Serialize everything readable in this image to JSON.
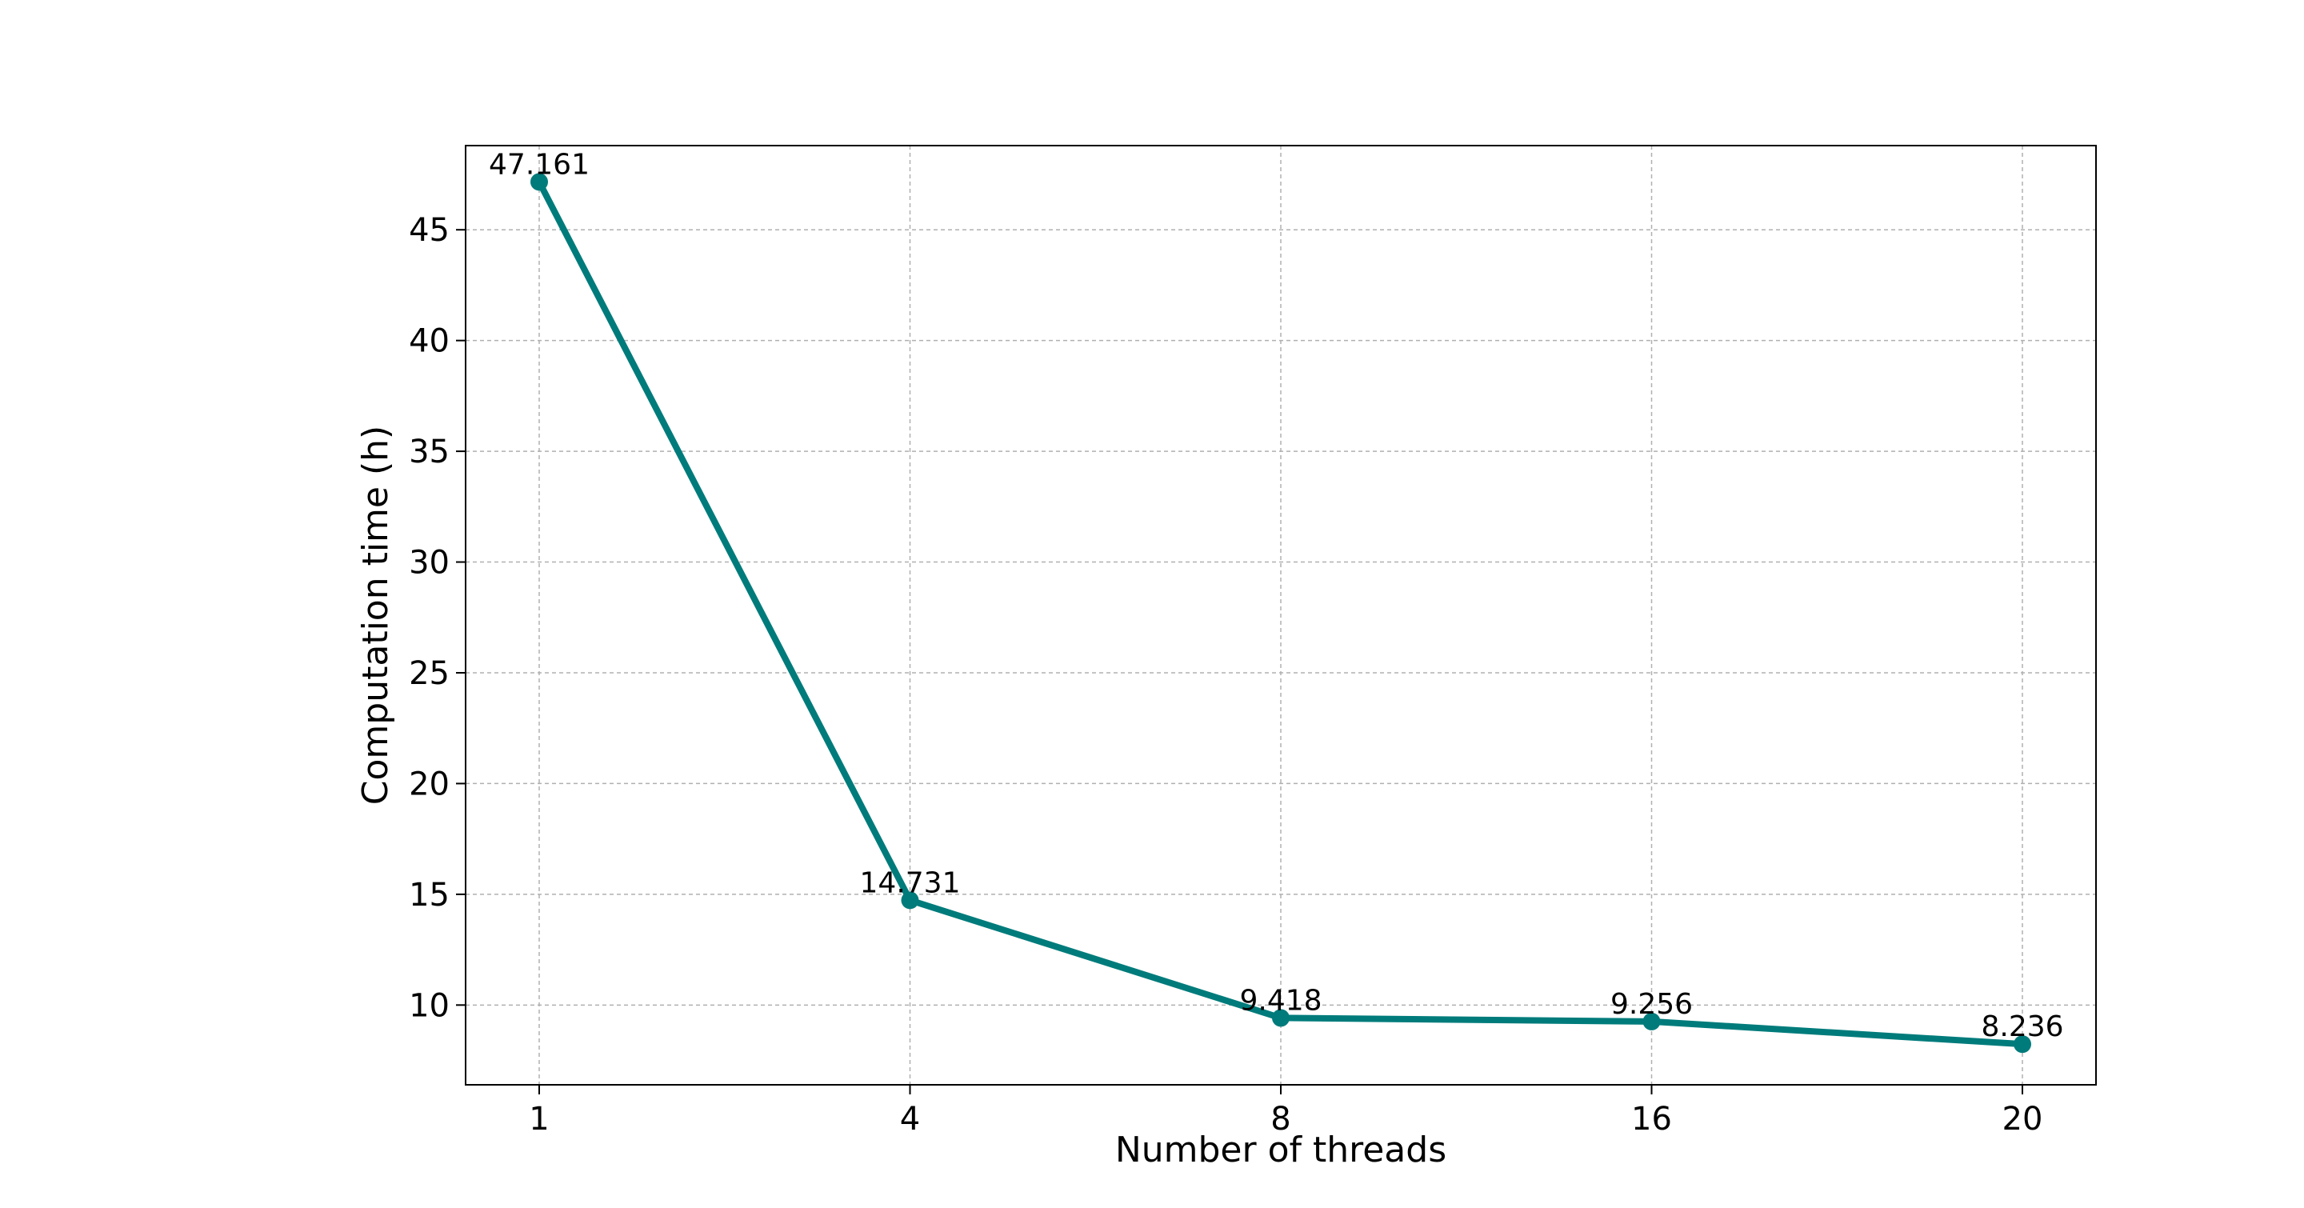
{
  "chart_data": {
    "type": "line",
    "title": "",
    "xlabel": "Number of threads",
    "ylabel": "Computation time (h)",
    "categories": [
      "1",
      "4",
      "8",
      "16",
      "20"
    ],
    "series": [
      {
        "values": [
          47.161,
          14.731,
          9.418,
          9.256,
          8.236
        ],
        "data_labels": [
          "47.161",
          "14.731",
          "9.418",
          "9.256",
          "8.236"
        ],
        "color": "#007b7b"
      }
    ],
    "y_ticks": [
      10,
      15,
      20,
      25,
      30,
      35,
      40,
      45
    ],
    "ylim": [
      6.4,
      48.8
    ],
    "grid": true,
    "grid_color": "#b0b0b0",
    "legend": "none"
  }
}
